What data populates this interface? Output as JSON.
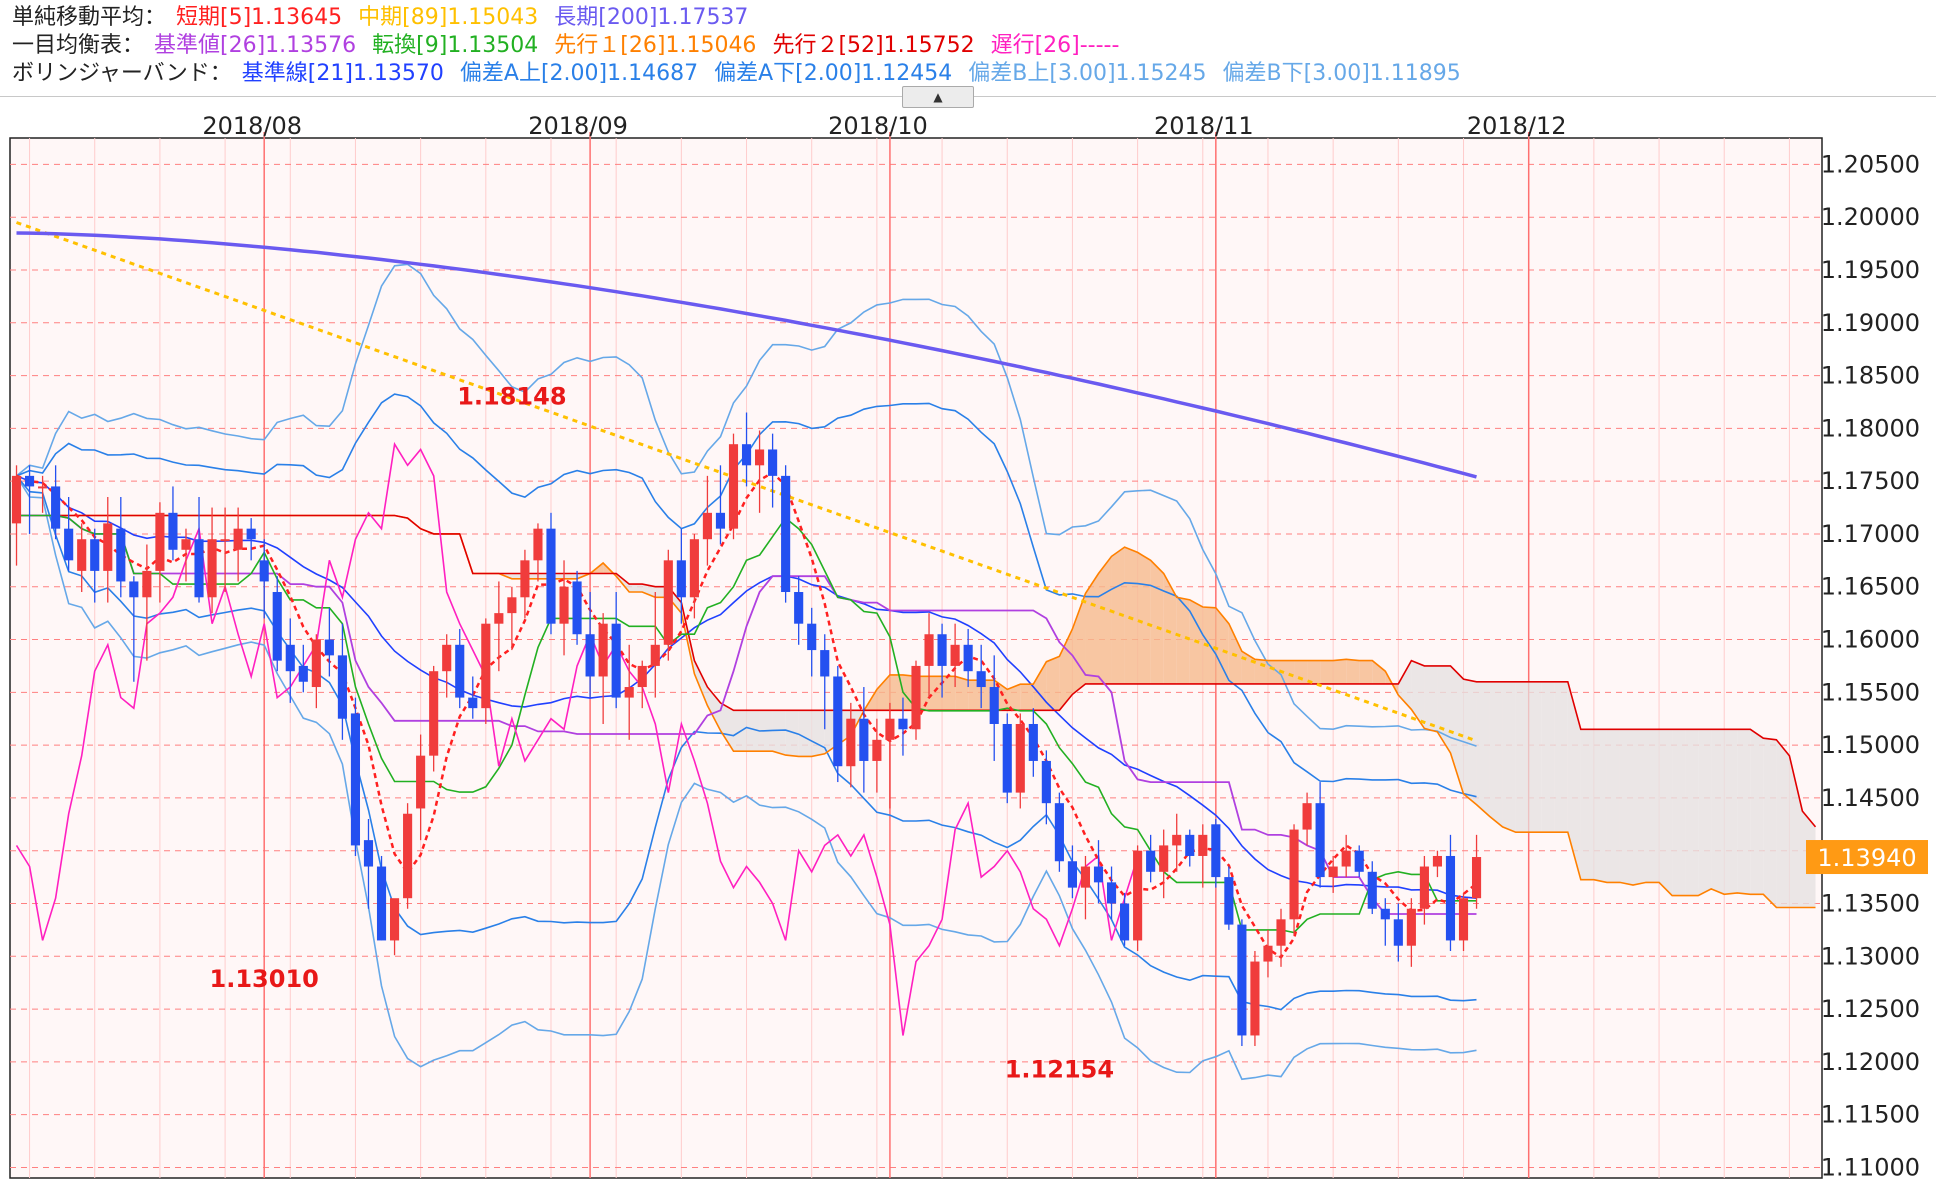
{
  "legend": {
    "sma": {
      "label": "単純移動平均：",
      "items": [
        {
          "text": "短期[5]1.13645",
          "color": "#ff2020"
        },
        {
          "text": "中期[89]1.15043",
          "color": "#ffc000"
        },
        {
          "text": "長期[200]1.17537",
          "color": "#6a5af0"
        }
      ]
    },
    "ichimoku": {
      "label": "一目均衡表：",
      "items": [
        {
          "text": "基準値[26]1.13576",
          "color": "#b040e0"
        },
        {
          "text": "転換[9]1.13504",
          "color": "#22b022"
        },
        {
          "text": "先行１[26]1.15046",
          "color": "#ff8000"
        },
        {
          "text": "先行２[52]1.15752",
          "color": "#e00000"
        },
        {
          "text": "遅行[26]-----",
          "color": "#ff20c0"
        }
      ]
    },
    "bollinger": {
      "label": "ボリンジャーバンド：",
      "items": [
        {
          "text": "基準線[21]1.13570",
          "color": "#2040ff"
        },
        {
          "text": "偏差A上[2.00]1.14687",
          "color": "#2a80e8"
        },
        {
          "text": "偏差A下[2.00]1.12454",
          "color": "#2a80e8"
        },
        {
          "text": "偏差B上[3.00]1.15245",
          "color": "#66a8e8"
        },
        {
          "text": "偏差B下[3.00]1.11895",
          "color": "#66a8e8"
        }
      ]
    }
  },
  "ui": {
    "collapse_label": "▲"
  },
  "chart_data": {
    "type": "candlestick",
    "x_ticks": [
      "2018/08",
      "2018/09",
      "2018/10",
      "2018/11",
      "2018/12"
    ],
    "y_ticks": [
      "1.20500",
      "1.20000",
      "1.19500",
      "1.19000",
      "1.18500",
      "1.18000",
      "1.17500",
      "1.17000",
      "1.16500",
      "1.16000",
      "1.15500",
      "1.15000",
      "1.14500",
      "1.14000",
      "1.13500",
      "1.13000",
      "1.12500",
      "1.12000",
      "1.11500",
      "1.11000"
    ],
    "ylim": [
      1.109,
      1.2075
    ],
    "current_price": "1.13940",
    "annotations": [
      {
        "text": "1.18148",
        "value": 1.18148,
        "index": 38
      },
      {
        "text": "1.13010",
        "value": 1.1301,
        "index": 19
      },
      {
        "text": "1.12154",
        "value": 1.12154,
        "index": 80
      }
    ],
    "colors": {
      "up": "#f03c3c",
      "down": "#2450f0",
      "grid": "#ff8080",
      "plot_bg": "#fff7f7",
      "kumo_bull": "#f6b98c",
      "kumo_bear": "#e6e1e1"
    },
    "candles_ohlc": [
      [
        1.171,
        1.1765,
        1.167,
        1.1755
      ],
      [
        1.1755,
        1.1765,
        1.17,
        1.1745
      ],
      [
        1.1745,
        1.1755,
        1.172,
        1.1745
      ],
      [
        1.1745,
        1.1765,
        1.1695,
        1.1705
      ],
      [
        1.1705,
        1.1735,
        1.1665,
        1.1675
      ],
      [
        1.1665,
        1.171,
        1.1645,
        1.1695
      ],
      [
        1.1695,
        1.1705,
        1.1635,
        1.1665
      ],
      [
        1.1665,
        1.1735,
        1.1635,
        1.171
      ],
      [
        1.1705,
        1.1735,
        1.164,
        1.1655
      ],
      [
        1.1655,
        1.166,
        1.156,
        1.164
      ],
      [
        1.164,
        1.169,
        1.158,
        1.1665
      ],
      [
        1.1665,
        1.173,
        1.1635,
        1.172
      ],
      [
        1.172,
        1.1745,
        1.1675,
        1.1685
      ],
      [
        1.1685,
        1.1705,
        1.1655,
        1.1695
      ],
      [
        1.1695,
        1.1735,
        1.1635,
        1.164
      ],
      [
        1.164,
        1.1725,
        1.1625,
        1.1695
      ],
      [
        1.1695,
        1.1725,
        1.1645,
        1.1695
      ],
      [
        1.1685,
        1.1725,
        1.1655,
        1.1705
      ],
      [
        1.1705,
        1.1715,
        1.1675,
        1.1695
      ],
      [
        1.1675,
        1.1695,
        1.162,
        1.1655
      ],
      [
        1.1645,
        1.166,
        1.157,
        1.158
      ],
      [
        1.1595,
        1.162,
        1.154,
        1.157
      ],
      [
        1.1575,
        1.1595,
        1.155,
        1.156
      ],
      [
        1.1555,
        1.1605,
        1.1535,
        1.16
      ],
      [
        1.16,
        1.163,
        1.1565,
        1.1585
      ],
      [
        1.1585,
        1.1615,
        1.1505,
        1.1525
      ],
      [
        1.153,
        1.1545,
        1.1395,
        1.1405
      ],
      [
        1.141,
        1.143,
        1.1345,
        1.1385
      ],
      [
        1.1385,
        1.1395,
        1.1315,
        1.1315
      ],
      [
        1.1315,
        1.1345,
        1.1301,
        1.1355
      ],
      [
        1.1355,
        1.1445,
        1.1345,
        1.1435
      ],
      [
        1.144,
        1.151,
        1.141,
        1.149
      ],
      [
        1.149,
        1.1575,
        1.1475,
        1.157
      ],
      [
        1.157,
        1.1605,
        1.1545,
        1.1595
      ],
      [
        1.1595,
        1.161,
        1.1535,
        1.1545
      ],
      [
        1.1545,
        1.1565,
        1.1525,
        1.1535
      ],
      [
        1.1535,
        1.162,
        1.152,
        1.1615
      ],
      [
        1.1615,
        1.1655,
        1.157,
        1.1625
      ],
      [
        1.1625,
        1.165,
        1.159,
        1.164
      ],
      [
        1.164,
        1.1685,
        1.162,
        1.1675
      ],
      [
        1.1675,
        1.171,
        1.1655,
        1.1705
      ],
      [
        1.1705,
        1.172,
        1.1605,
        1.1615
      ],
      [
        1.1615,
        1.1675,
        1.1585,
        1.165
      ],
      [
        1.1655,
        1.1665,
        1.1595,
        1.1605
      ],
      [
        1.1605,
        1.1645,
        1.1545,
        1.1565
      ],
      [
        1.1565,
        1.1625,
        1.152,
        1.1615
      ],
      [
        1.1615,
        1.1645,
        1.1535,
        1.1545
      ],
      [
        1.1545,
        1.1595,
        1.1505,
        1.1555
      ],
      [
        1.1555,
        1.158,
        1.1535,
        1.1575
      ],
      [
        1.1575,
        1.1645,
        1.1545,
        1.1595
      ],
      [
        1.1595,
        1.1685,
        1.158,
        1.1675
      ],
      [
        1.1675,
        1.1705,
        1.1615,
        1.164
      ],
      [
        1.164,
        1.17,
        1.162,
        1.1695
      ],
      [
        1.1695,
        1.1755,
        1.167,
        1.172
      ],
      [
        1.172,
        1.1765,
        1.169,
        1.1705
      ],
      [
        1.1705,
        1.1795,
        1.1695,
        1.1785
      ],
      [
        1.1785,
        1.1815,
        1.1745,
        1.1765
      ],
      [
        1.1765,
        1.1798,
        1.172,
        1.178
      ],
      [
        1.178,
        1.1795,
        1.1725,
        1.1755
      ],
      [
        1.1755,
        1.1765,
        1.1635,
        1.1645
      ],
      [
        1.1645,
        1.166,
        1.1595,
        1.1615
      ],
      [
        1.1615,
        1.163,
        1.1565,
        1.159
      ],
      [
        1.159,
        1.1605,
        1.1515,
        1.1565
      ],
      [
        1.1565,
        1.1575,
        1.1465,
        1.148
      ],
      [
        1.148,
        1.154,
        1.146,
        1.1525
      ],
      [
        1.1525,
        1.1555,
        1.1455,
        1.1485
      ],
      [
        1.1485,
        1.1525,
        1.1455,
        1.1505
      ],
      [
        1.1505,
        1.154,
        1.144,
        1.1525
      ],
      [
        1.1525,
        1.1545,
        1.149,
        1.1515
      ],
      [
        1.1515,
        1.158,
        1.1505,
        1.1575
      ],
      [
        1.1575,
        1.1625,
        1.1545,
        1.1605
      ],
      [
        1.1605,
        1.1615,
        1.1545,
        1.1575
      ],
      [
        1.1575,
        1.1615,
        1.1555,
        1.1595
      ],
      [
        1.1595,
        1.161,
        1.1555,
        1.157
      ],
      [
        1.157,
        1.1595,
        1.1535,
        1.1555
      ],
      [
        1.1555,
        1.1585,
        1.1485,
        1.152
      ],
      [
        1.152,
        1.153,
        1.1445,
        1.1455
      ],
      [
        1.1455,
        1.153,
        1.144,
        1.152
      ],
      [
        1.152,
        1.1535,
        1.147,
        1.1485
      ],
      [
        1.1485,
        1.1495,
        1.1425,
        1.1445
      ],
      [
        1.1445,
        1.1455,
        1.138,
        1.139
      ],
      [
        1.139,
        1.1405,
        1.1355,
        1.1365
      ],
      [
        1.1365,
        1.1395,
        1.1335,
        1.1385
      ],
      [
        1.1385,
        1.141,
        1.135,
        1.137
      ],
      [
        1.137,
        1.1385,
        1.1335,
        1.135
      ],
      [
        1.135,
        1.136,
        1.131,
        1.1315
      ],
      [
        1.1315,
        1.1405,
        1.1305,
        1.14
      ],
      [
        1.14,
        1.1415,
        1.137,
        1.138
      ],
      [
        1.138,
        1.142,
        1.1355,
        1.1405
      ],
      [
        1.1405,
        1.1435,
        1.138,
        1.1415
      ],
      [
        1.1415,
        1.142,
        1.1385,
        1.1395
      ],
      [
        1.1395,
        1.1425,
        1.1365,
        1.1415
      ],
      [
        1.1425,
        1.143,
        1.1365,
        1.1375
      ],
      [
        1.1375,
        1.1385,
        1.1325,
        1.133
      ],
      [
        1.133,
        1.1335,
        1.1215,
        1.1225
      ],
      [
        1.1225,
        1.1305,
        1.1215,
        1.1295
      ],
      [
        1.1295,
        1.1325,
        1.128,
        1.131
      ],
      [
        1.131,
        1.1345,
        1.129,
        1.1335
      ],
      [
        1.1335,
        1.1425,
        1.132,
        1.142
      ],
      [
        1.142,
        1.1455,
        1.1405,
        1.1445
      ],
      [
        1.1445,
        1.1465,
        1.1365,
        1.1375
      ],
      [
        1.1375,
        1.1395,
        1.136,
        1.1385
      ],
      [
        1.1385,
        1.1415,
        1.1375,
        1.14
      ],
      [
        1.14,
        1.1405,
        1.1375,
        1.138
      ],
      [
        1.138,
        1.139,
        1.134,
        1.1345
      ],
      [
        1.1345,
        1.1355,
        1.131,
        1.1335
      ],
      [
        1.1335,
        1.135,
        1.1295,
        1.131
      ],
      [
        1.131,
        1.1355,
        1.129,
        1.1345
      ],
      [
        1.1345,
        1.1395,
        1.133,
        1.1385
      ],
      [
        1.1385,
        1.14,
        1.1375,
        1.1395
      ],
      [
        1.1395,
        1.1415,
        1.1305,
        1.1315
      ],
      [
        1.1315,
        1.136,
        1.1305,
        1.1355
      ],
      [
        1.1355,
        1.1415,
        1.1345,
        1.1394
      ]
    ],
    "series": [
      {
        "name": "短期[5]",
        "color": "#ff2020",
        "dashed": true,
        "values": []
      },
      {
        "name": "中期[89]",
        "color": "#ffc000",
        "dashed": true,
        "values": []
      },
      {
        "name": "長期[200]",
        "color": "#6a5af0",
        "values": []
      },
      {
        "name": "基準値[26]",
        "color": "#b040e0",
        "values": []
      },
      {
        "name": "転換[9]",
        "color": "#22b022",
        "values": []
      },
      {
        "name": "先行１[26]",
        "color": "#ff8000",
        "values": []
      },
      {
        "name": "先行２[52]",
        "color": "#e00000",
        "values": []
      },
      {
        "name": "遅行[26]",
        "color": "#ff20c0",
        "values": []
      },
      {
        "name": "基準線[21]",
        "color": "#2040ff",
        "values": []
      },
      {
        "name": "偏差A上[2.00]",
        "color": "#2a80e8",
        "values": []
      },
      {
        "name": "偏差A下[2.00]",
        "color": "#2a80e8",
        "values": []
      },
      {
        "name": "偏差B上[3.00]",
        "color": "#66a8e8",
        "values": []
      },
      {
        "name": "偏差B下[3.00]",
        "color": "#66a8e8",
        "values": []
      }
    ]
  }
}
